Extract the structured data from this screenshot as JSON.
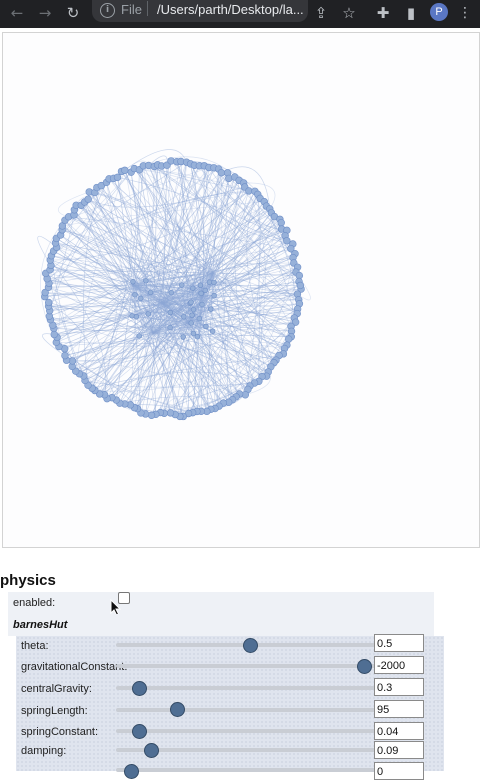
{
  "browser": {
    "file_label": "File",
    "url": "/Users/parth/Desktop/la...",
    "avatar_initial": "P",
    "icons": [
      "back-arrow-icon",
      "forward-arrow-icon",
      "reload-icon",
      "info-icon",
      "share-icon",
      "star-icon",
      "extensions-icon",
      "sidebar-icon",
      "menu-icon"
    ]
  },
  "network": {
    "node_color": "#97b1d9",
    "edge_color": "#8ea8d6"
  },
  "config": {
    "section_title": "physics",
    "enabled_label": "enabled:",
    "enabled_checked": false,
    "group_label": "barnesHut",
    "params": [
      {
        "label": "theta:",
        "value": "0.5",
        "fraction": 0.49
      },
      {
        "label": "gravitationalConstant:",
        "value": "-2000",
        "fraction": 0.93
      },
      {
        "label": "centralGravity:",
        "value": "0.3",
        "fraction": 0.06
      },
      {
        "label": "springLength:",
        "value": "95",
        "fraction": 0.21
      },
      {
        "label": "springConstant:",
        "value": "0.04",
        "fraction": 0.06
      },
      {
        "label": "damping:",
        "value": "0.09",
        "fraction": 0.11
      },
      {
        "label": "",
        "value": "0",
        "fraction": 0.03
      }
    ]
  }
}
